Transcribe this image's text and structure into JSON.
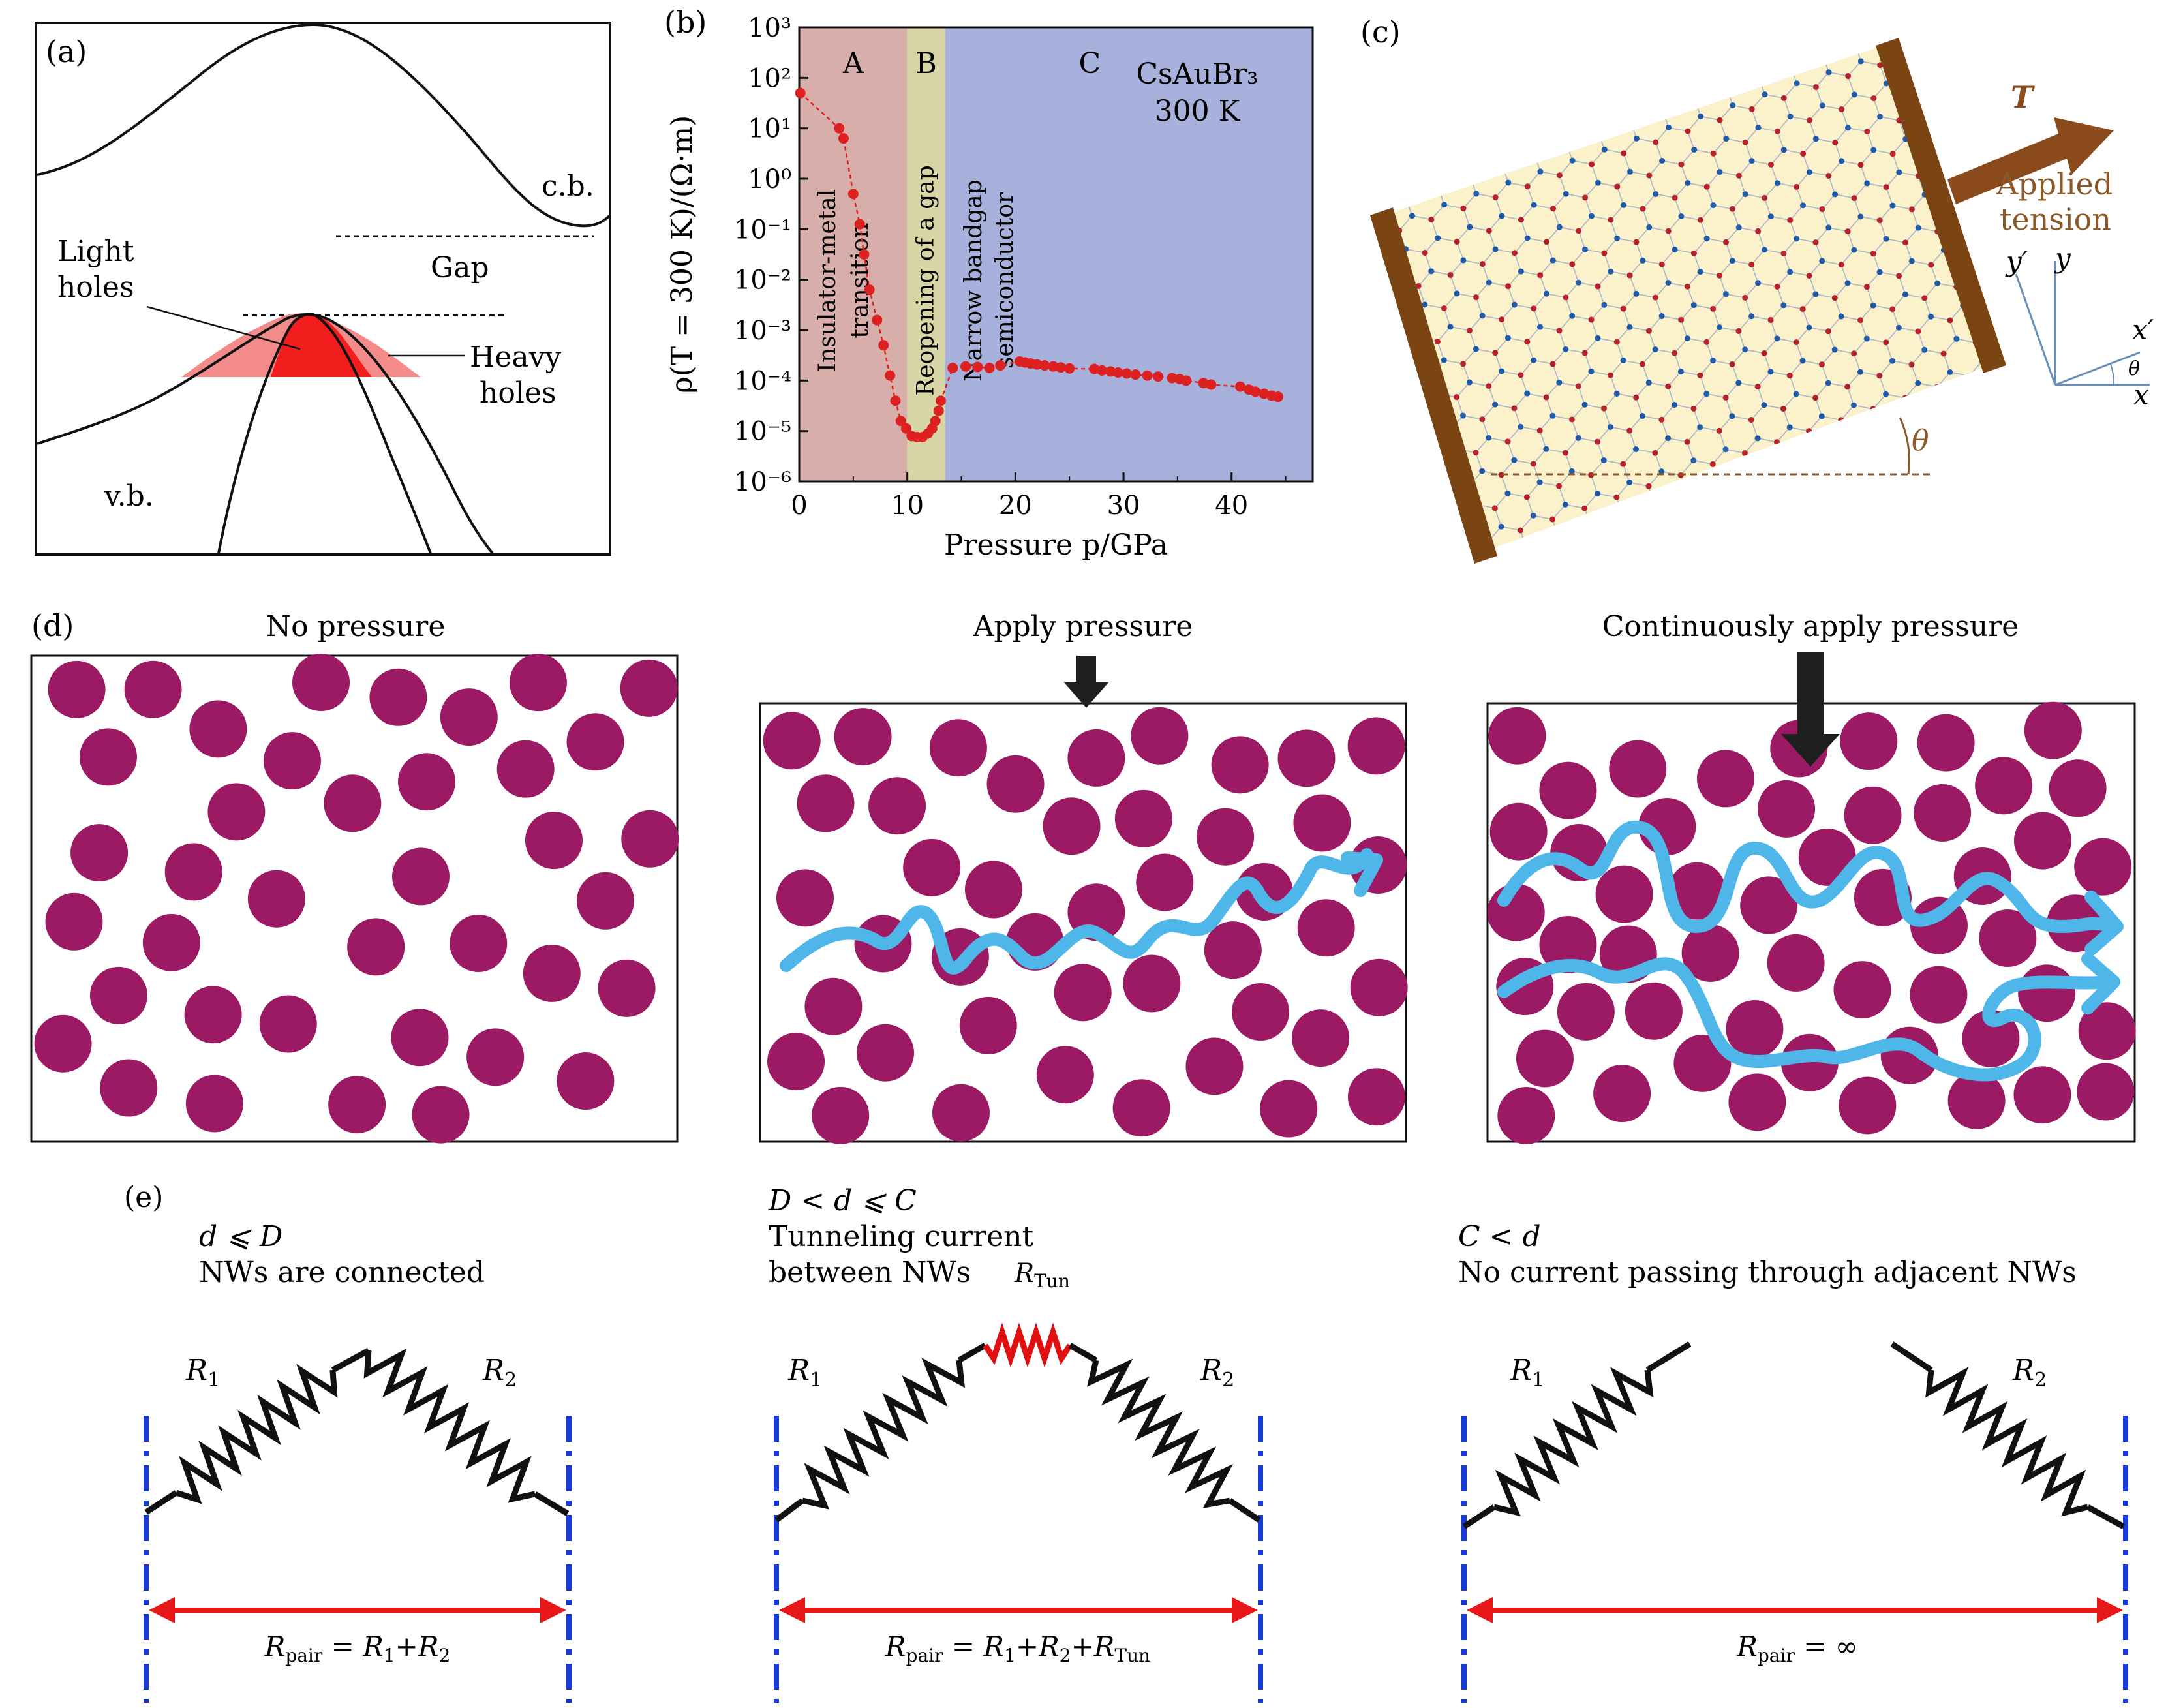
{
  "figure": {
    "panel_labels": [
      "(a)",
      "(b)",
      "(c)",
      "(d)",
      "(e)"
    ]
  },
  "panel_a": {
    "labels": {
      "cb": "c.b.",
      "gap": "Gap",
      "light_holes": [
        "Light",
        "holes"
      ],
      "heavy_holes": [
        "Heavy",
        "holes"
      ],
      "vb": "v.b."
    },
    "colors": {
      "light": "#f48b8b",
      "heavy": "#f21d1d"
    }
  },
  "panel_b": {
    "annotation": {
      "line1": "CsAuBr₃",
      "line2": "300 K"
    },
    "regions": [
      {
        "label": "A",
        "from": 0,
        "to": 10,
        "color": "#d8aeaa",
        "vertical_text": [
          "Insulator-metal",
          "transition"
        ]
      },
      {
        "label": "B",
        "from": 10,
        "to": 13.5,
        "color": "#d8d6a6",
        "vertical_text": [
          "Reopening of a gap"
        ]
      },
      {
        "label": "C",
        "from": 13.5,
        "to": 47.5,
        "color": "#a8b1dc",
        "vertical_text": [
          "Narrow bandgap",
          "semiconductor"
        ]
      }
    ],
    "chart_data": {
      "type": "scatter",
      "title": "",
      "xlabel": "Pressure p/GPa",
      "ylabel": "ρ(T = 300 K)/(Ω·m)",
      "xlim": [
        0,
        47.5
      ],
      "ylim_log10": [
        -6,
        3
      ],
      "x_ticks": [
        0,
        10,
        20,
        30,
        40
      ],
      "y_ticks": [
        "10⁻⁶",
        "10⁻⁵",
        "10⁻⁴",
        "10⁻³",
        "10⁻²",
        "10⁻¹",
        "10⁰",
        "10¹",
        "10²",
        "10³"
      ],
      "color": "#dd2020",
      "series": [
        {
          "name": "CsAuBr3 300 K",
          "x": [
            0.1,
            3.7,
            4.1,
            5.0,
            5.6,
            6.0,
            6.5,
            7.2,
            7.8,
            8.4,
            8.9,
            9.4,
            9.9,
            10.4,
            10.9,
            11.4,
            11.9,
            12.3,
            12.6,
            12.9,
            13.1,
            14.2,
            15.4,
            16.5,
            17.6,
            18.6,
            20.4,
            20.9,
            21.4,
            22.0,
            22.7,
            23.5,
            24.2,
            25.0,
            27.3,
            28.0,
            28.8,
            29.5,
            30.3,
            31.1,
            32.2,
            33.2,
            34.5,
            35.2,
            35.8,
            37.4,
            38.1,
            40.8,
            41.6,
            42.2,
            43.0,
            43.7,
            44.3
          ],
          "y_log10": [
            1.7,
            1.0,
            0.8,
            -0.3,
            -0.9,
            -1.5,
            -2.2,
            -2.8,
            -3.3,
            -3.9,
            -4.4,
            -4.8,
            -4.95,
            -5.1,
            -5.12,
            -5.12,
            -5.05,
            -4.95,
            -4.8,
            -4.6,
            -4.4,
            -3.75,
            -3.72,
            -3.73,
            -3.75,
            -3.7,
            -3.62,
            -3.64,
            -3.66,
            -3.68,
            -3.7,
            -3.72,
            -3.74,
            -3.76,
            -3.77,
            -3.8,
            -3.82,
            -3.84,
            -3.86,
            -3.88,
            -3.9,
            -3.92,
            -3.95,
            -3.97,
            -4.0,
            -4.05,
            -4.08,
            -4.12,
            -4.18,
            -4.22,
            -4.26,
            -4.3,
            -4.32
          ]
        }
      ]
    }
  },
  "panel_c": {
    "arrow_symbol": "T",
    "applied_tension": [
      "Applied",
      "tension"
    ],
    "axes": {
      "y_prime": "y′",
      "y": "y",
      "x_prime": "x′",
      "x": "x",
      "theta": "θ"
    },
    "angle_label": "θ",
    "colors": {
      "sheet": "#fbf1cb",
      "clamp": "#7b4413",
      "arrow": "#8b4a1b",
      "text": "#8b5a2b"
    }
  },
  "panel_d": {
    "titles": [
      "No pressure",
      "Apply pressure",
      "Continuously apply pressure"
    ],
    "colors": {
      "particle": "#9c1a63",
      "current": "#4eb6e8",
      "press": "#1f1f1f"
    }
  },
  "panel_e": {
    "col1": {
      "condition": "d ⩽ D",
      "desc": "NWs are connected",
      "r1": "R₁",
      "r2": "R₂",
      "formula": "Rₚₐᵢᵣ = R₁+R₂"
    },
    "col2": {
      "condition": "D < d ⩽ C",
      "desc1": "Tunneling current",
      "desc2": "between NWs",
      "rtun": "R_Tun",
      "r1": "R₁",
      "r2": "R₂",
      "formula": "Rₚₐᵢᵣ = R₁+R₂+R_Tun"
    },
    "col3": {
      "condition": "C < d",
      "desc": "No current passing through adjacent NWs",
      "r1": "R₁",
      "r2": "R₂",
      "formula": "Rₚₐᵢᵣ = ∞"
    },
    "colors": {
      "spring": "#111111",
      "tunnel": "#e01010",
      "dash": "#1a3ad6",
      "arrow": "#e81818"
    }
  }
}
